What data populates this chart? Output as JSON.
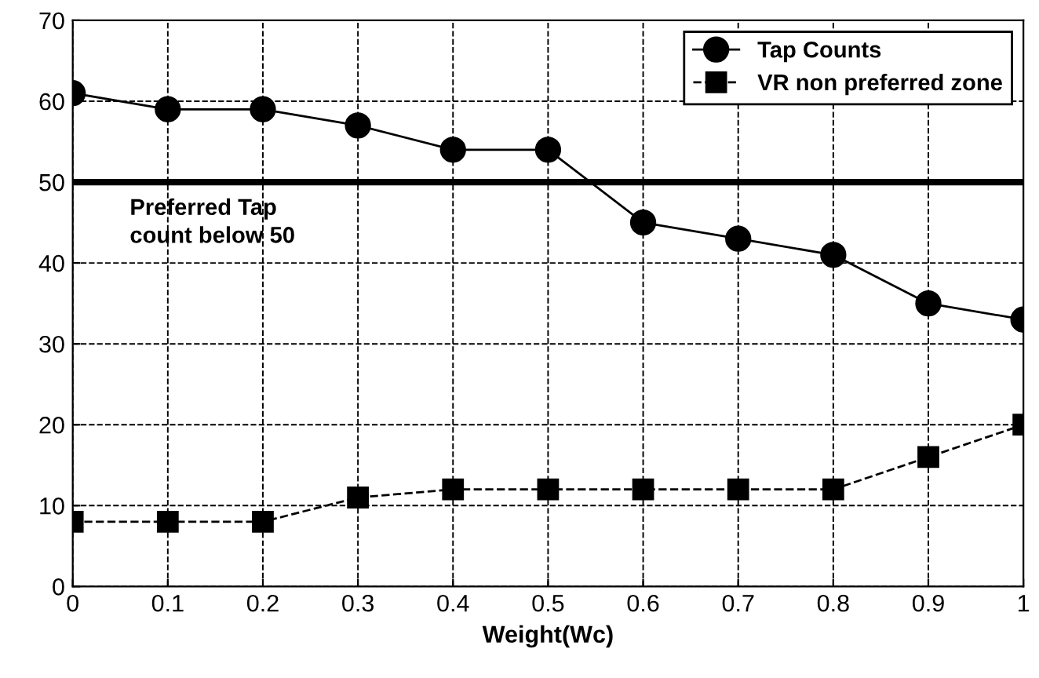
{
  "chart_data": {
    "type": "line",
    "xlabel": "Weight(Wc)",
    "x": [
      0,
      0.1,
      0.2,
      0.3,
      0.4,
      0.5,
      0.6,
      0.7,
      0.8,
      0.9,
      1
    ],
    "series": [
      {
        "name": "Tap Counts",
        "color": "#000000",
        "marker": "circle",
        "line_style": "solid",
        "values": [
          61,
          59,
          59,
          57,
          54,
          54,
          45,
          43,
          41,
          35,
          33
        ]
      },
      {
        "name": "VR non preferred zone",
        "color": "#000000",
        "marker": "square",
        "line_style": "dashed",
        "values": [
          8,
          8,
          8,
          11,
          12,
          12,
          12,
          12,
          12,
          16,
          20
        ]
      }
    ],
    "xlim": [
      0,
      1
    ],
    "ylim": [
      0,
      70
    ],
    "xticks": [
      0,
      0.1,
      0.2,
      0.3,
      0.4,
      0.5,
      0.6,
      0.7,
      0.8,
      0.9,
      1
    ],
    "yticks": [
      0,
      10,
      20,
      30,
      40,
      50,
      60,
      70
    ],
    "ref_lines": [
      {
        "axis": "y",
        "value": 50,
        "label": "Preferred Tap\ncount below 50",
        "color": "#000000",
        "line_style": "solid"
      }
    ],
    "grid": true,
    "legend": "top right"
  }
}
